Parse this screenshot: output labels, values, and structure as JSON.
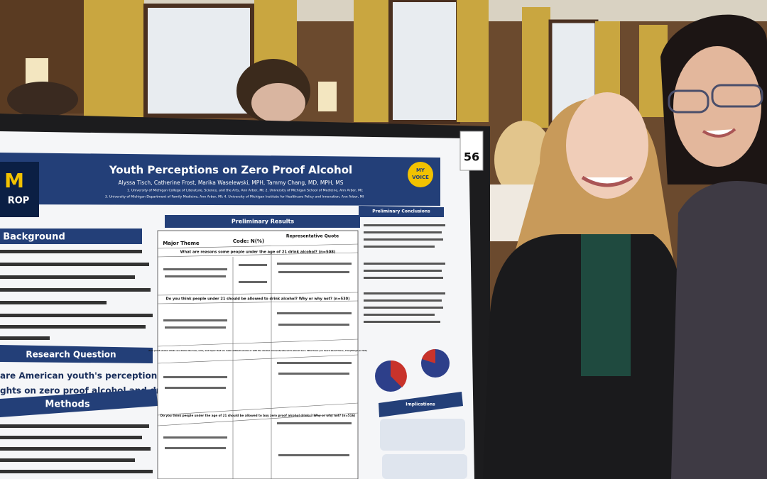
{
  "poster": {
    "title": "Youth Perceptions on Zero Proof Alcohol",
    "authors": "Alyssa Tisch, Catherine Frost, Marika Waselewski, MPH, Tammy Chang, MD, MPH, MS",
    "affiliations": [
      "1. University of Michigan College of Literature, Science, and the Arts, Ann Arbor, MI; 2. University of Michigan School of Medicine, Ann Arbor, MI;",
      "3. University of Michigan Department of Family Medicine, Ann Arbor, MI; 4. University of Michigan Institute for Healthcare Policy and Innovation, Ann Arbor, MI"
    ],
    "badge": [
      "MY",
      "VOICE"
    ],
    "board_number": "56",
    "sections": {
      "background": "Background",
      "research_question": "Research Question",
      "methods": "Methods",
      "results": "Preliminary Results",
      "conclusions": "Preliminary Conclusions",
      "implications": "Implications"
    },
    "research_question_text": [
      "are American youth's perceptions and",
      "ghts on zero proof alcohol and drinking?"
    ],
    "table": {
      "headers": [
        "Major Theme",
        "Code: N(%)",
        "Representative Quote"
      ],
      "questions": [
        "What are reasons some people under the age of 21 drink alcohol? (n=508)",
        "Do you think people under 21 should be allowed to drink alcohol? Why or why not? (n=530)",
        "Zero proof alcohol drinks are drinks like beer, wine, and liquor that are made without alcohol or with the alcohol removed/reduced to almost zero. What have you heard about these, if anything? (n=524)",
        "Do you think people under the age of 21 should be allowed to buy zero proof alcohol drinks? Why or why not? (n=516)"
      ]
    }
  }
}
